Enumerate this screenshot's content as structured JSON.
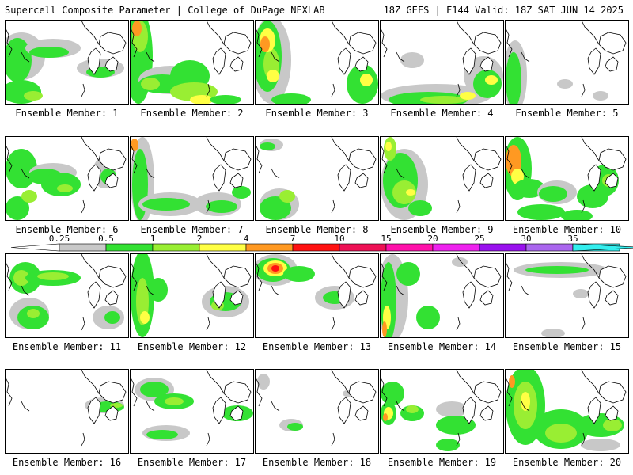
{
  "header": {
    "title": "Supercell Composite Parameter | College of DuPage NEXLAB",
    "run_info": "18Z GEFS | F144 Valid: 18Z SAT JUN 14 2025"
  },
  "colorbar": {
    "labels": [
      "0.25",
      "0.5",
      "1",
      "2",
      "4",
      "7",
      "10",
      "15",
      "20",
      "25",
      "30",
      "35"
    ],
    "colors": [
      "#c8c8c8",
      "#33e133",
      "#99ee33",
      "#ffff44",
      "#ff9922",
      "#ff1111",
      "#ee1155",
      "#ff11aa",
      "#ee22ee",
      "#9911ee",
      "#aa66ee",
      "#33eeee"
    ]
  },
  "colors": {
    "gray": "#c8c8c8",
    "green": "#33e133",
    "lightgreen": "#99ee33",
    "yellow": "#ffff44",
    "orange": "#ff9922",
    "red": "#ff1111"
  },
  "panels": [
    {
      "label": "Ensemble Member: 1"
    },
    {
      "label": "Ensemble Member: 2"
    },
    {
      "label": "Ensemble Member: 3"
    },
    {
      "label": "Ensemble Member: 4"
    },
    {
      "label": "Ensemble Member: 5"
    },
    {
      "label": "Ensemble Member: 6"
    },
    {
      "label": "Ensemble Member: 7"
    },
    {
      "label": "Ensemble Member: 8"
    },
    {
      "label": "Ensemble Member: 9"
    },
    {
      "label": "Ensemble Member: 10"
    },
    {
      "label": "Ensemble Member: 11"
    },
    {
      "label": "Ensemble Member: 12"
    },
    {
      "label": "Ensemble Member: 13"
    },
    {
      "label": "Ensemble Member: 14"
    },
    {
      "label": "Ensemble Member: 15"
    },
    {
      "label": "Ensemble Member: 16"
    },
    {
      "label": "Ensemble Member: 17"
    },
    {
      "label": "Ensemble Member: 18"
    },
    {
      "label": "Ensemble Member: 19"
    },
    {
      "label": "Ensemble Member: 20"
    }
  ]
}
